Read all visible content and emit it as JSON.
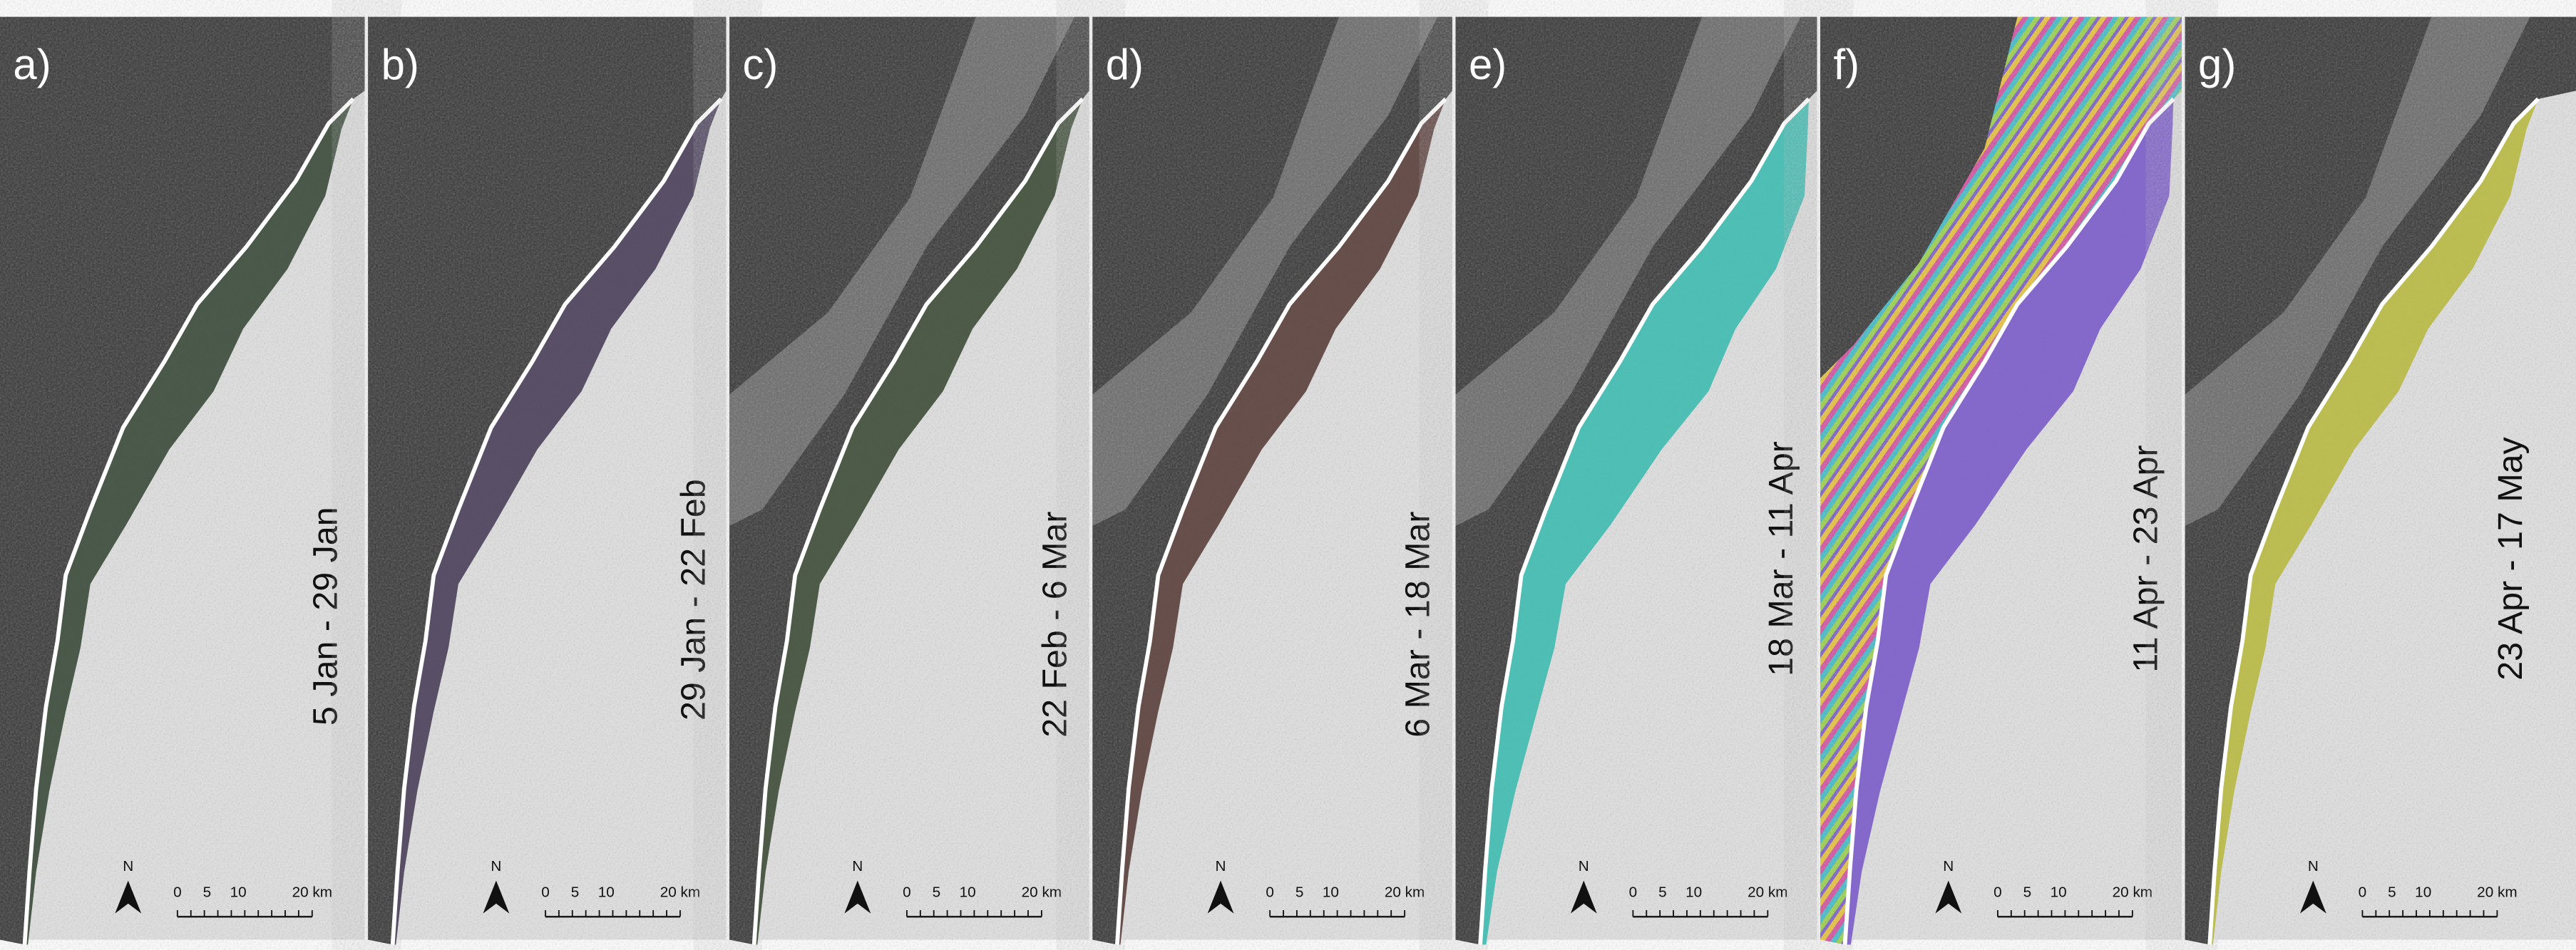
{
  "panels": [
    {
      "label": "a)",
      "dates": "5 Jan - 29 Jan"
    },
    {
      "label": "b)",
      "dates": "29 Jan - 22 Feb"
    },
    {
      "label": "c)",
      "dates": "22 Feb - 6 Mar"
    },
    {
      "label": "d)",
      "dates": "6 Mar - 18 Mar"
    },
    {
      "label": "e)",
      "dates": "18 Mar - 11 Apr"
    },
    {
      "label": "f)",
      "dates": "11 Apr - 23 Apr"
    },
    {
      "label": "g)",
      "dates": "23 Apr - 17 May"
    }
  ],
  "north": "N",
  "scale_bar": [
    "0",
    "5",
    "10",
    "20 km"
  ]
}
